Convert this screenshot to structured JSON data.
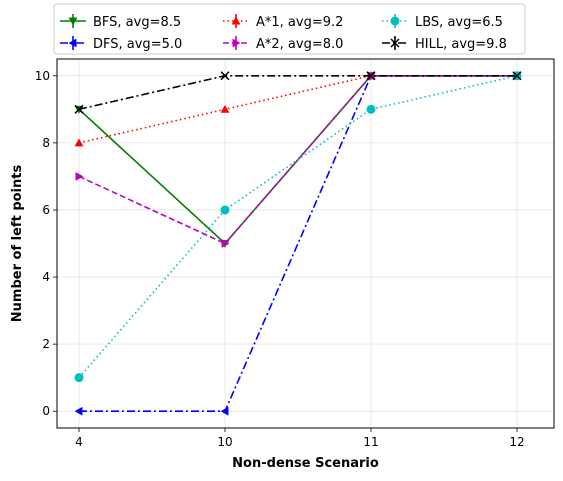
{
  "chart_data": {
    "type": "line",
    "categories": [
      "4",
      "10",
      "11",
      "12"
    ],
    "xlabel": "Non-dense Scenario",
    "ylabel": "Number of left points",
    "ylim": [
      -0.5,
      10.5
    ],
    "yticks": [
      0,
      2,
      4,
      6,
      8,
      10
    ],
    "grid": true,
    "legend_position": "top",
    "series": [
      {
        "name": "BFS, avg=8.5",
        "values": [
          9,
          5,
          10,
          10
        ],
        "color": "#008000",
        "linestyle": "solid",
        "marker": "triangle-down"
      },
      {
        "name": "DFS, avg=5.0",
        "values": [
          0,
          0,
          10,
          10
        ],
        "color": "#0000ff",
        "linestyle": "dashdot",
        "marker": "triangle-left"
      },
      {
        "name": "A*1, avg=9.2",
        "values": [
          8,
          9,
          10,
          10
        ],
        "color": "#ff0000",
        "linestyle": "dotted",
        "marker": "triangle-up"
      },
      {
        "name": "A*2, avg=8.0",
        "values": [
          7,
          5,
          10,
          10
        ],
        "color": "#bf00bf",
        "linestyle": "dashed",
        "marker": "triangle-right"
      },
      {
        "name": "LBS, avg=6.5",
        "values": [
          1,
          6,
          9,
          10
        ],
        "color": "#00bfbf",
        "linestyle": "dotted",
        "marker": "circle"
      },
      {
        "name": "HILL, avg=9.8",
        "values": [
          9,
          10,
          10,
          10
        ],
        "color": "#000000",
        "linestyle": "dashdot",
        "marker": "x"
      }
    ]
  }
}
